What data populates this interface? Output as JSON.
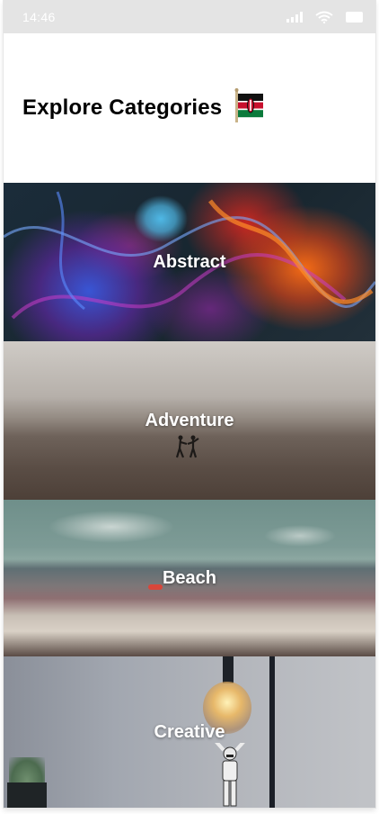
{
  "status_bar": {
    "time": "14:46",
    "icons": [
      "signal-icon",
      "wifi-icon",
      "battery-icon"
    ],
    "background": "#e4e4e4"
  },
  "header": {
    "title": "Explore Categories",
    "flag_icon": "kenya-flag-icon"
  },
  "categories": [
    {
      "label": "Abstract"
    },
    {
      "label": "Adventure"
    },
    {
      "label": "Beach"
    },
    {
      "label": "Creative"
    }
  ]
}
